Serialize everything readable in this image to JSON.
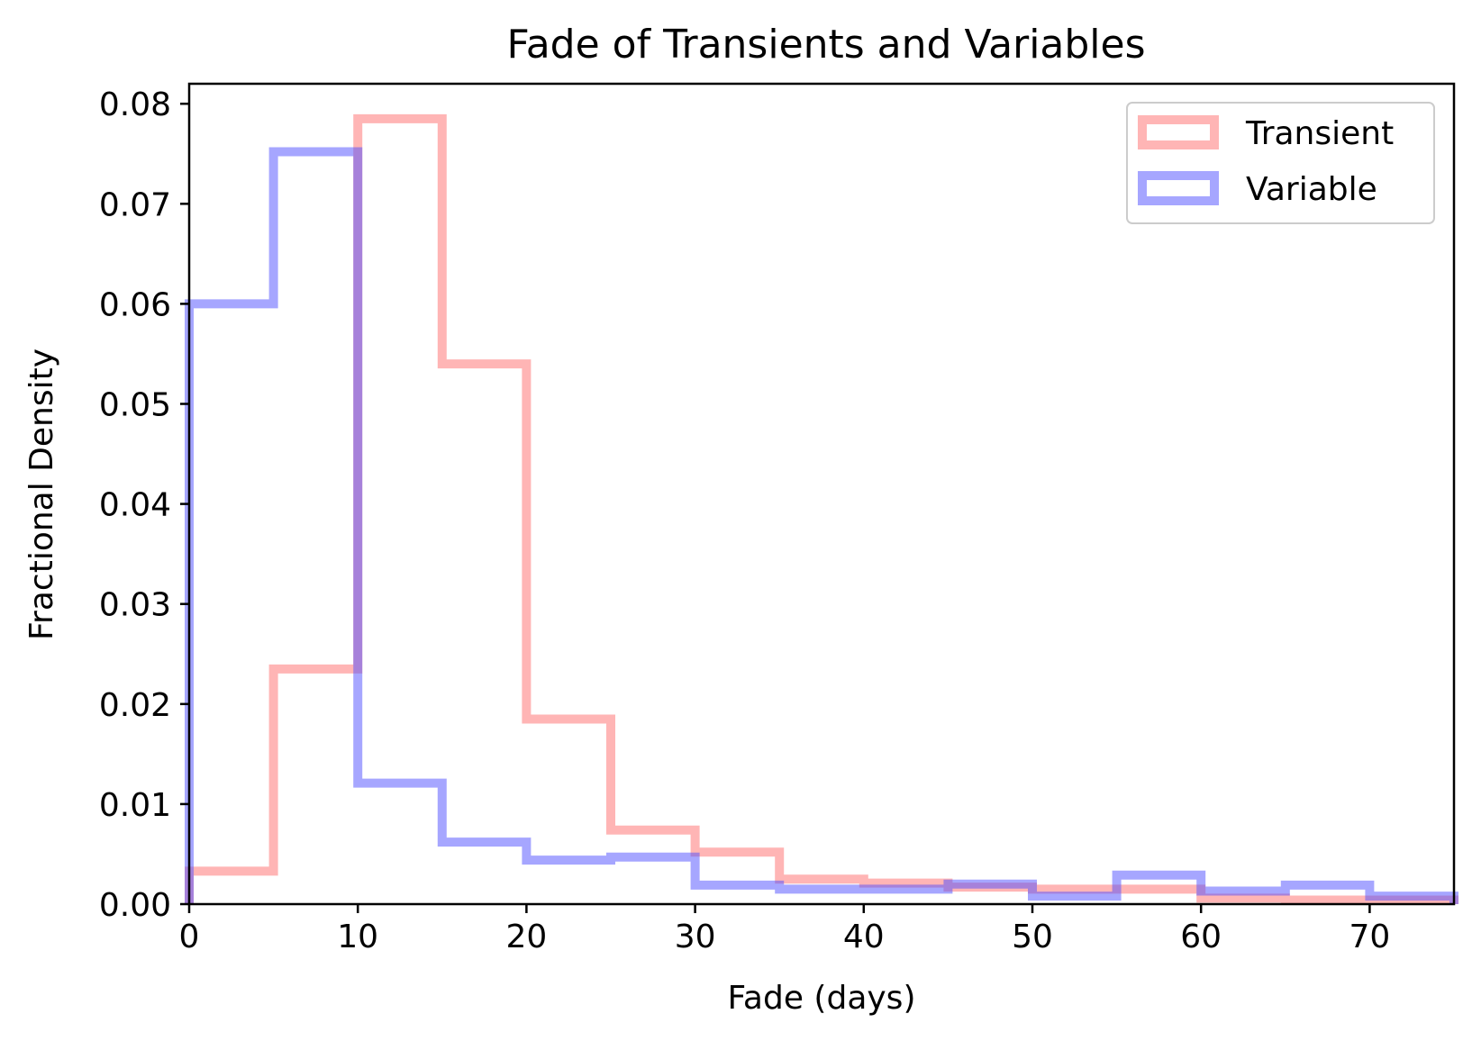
{
  "chart_data": {
    "type": "histogram",
    "title": "Fade of Transients and Variables",
    "xlabel": "Fade (days)",
    "ylabel": "Fractional Density",
    "xlim": [
      0,
      75
    ],
    "ylim": [
      0,
      0.082
    ],
    "xticks": [
      0,
      10,
      20,
      30,
      40,
      50,
      60,
      70
    ],
    "yticks": [
      0.0,
      0.01,
      0.02,
      0.03,
      0.04,
      0.05,
      0.06,
      0.07,
      0.08
    ],
    "xtick_labels": [
      "0",
      "10",
      "20",
      "30",
      "40",
      "50",
      "60",
      "70"
    ],
    "ytick_labels": [
      "0.00",
      "0.01",
      "0.02",
      "0.03",
      "0.04",
      "0.05",
      "0.06",
      "0.07",
      "0.08"
    ],
    "grid": false,
    "legend_position": "top-right",
    "bin_edges": [
      0,
      5,
      10,
      15,
      20,
      25,
      30,
      35,
      40,
      45,
      50,
      55,
      60,
      65,
      70,
      75
    ],
    "series": [
      {
        "name": "Transient",
        "color": "#ff6b6b",
        "opacity": 0.5,
        "values": [
          0.0033,
          0.0235,
          0.0785,
          0.054,
          0.0185,
          0.0074,
          0.0052,
          0.0025,
          0.0021,
          0.0017,
          0.0015,
          0.0015,
          0.0006,
          0.0004,
          0.0004
        ]
      },
      {
        "name": "Variable",
        "color": "#4d4dff",
        "opacity": 0.5,
        "values": [
          0.06,
          0.0752,
          0.0121,
          0.0062,
          0.0044,
          0.0047,
          0.0019,
          0.0015,
          0.0015,
          0.002,
          0.0008,
          0.0029,
          0.0013,
          0.0019,
          0.0008
        ]
      }
    ]
  }
}
